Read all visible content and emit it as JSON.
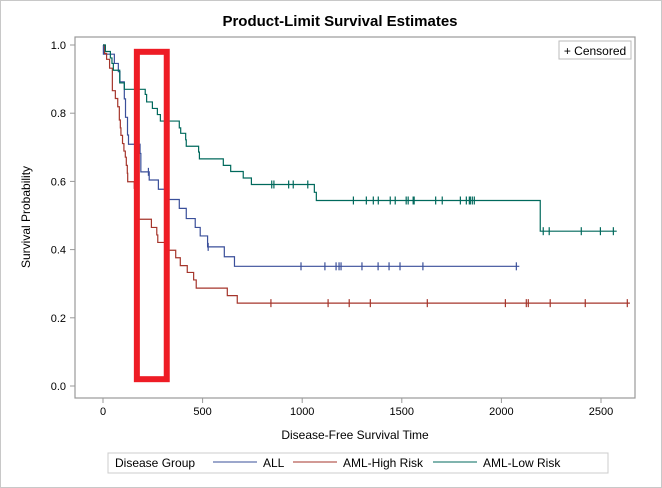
{
  "chart_data": {
    "type": "line",
    "title": "Product-Limit Survival Estimates",
    "xlabel": "Disease-Free Survival Time",
    "ylabel": "Survival Probability",
    "xlim": [
      -130,
      2650
    ],
    "ylim": [
      -0.03,
      1.04
    ],
    "xticks": [
      0,
      500,
      1000,
      1500,
      2000,
      2500
    ],
    "xtick_labels": [
      "0",
      "500",
      "1000",
      "1500",
      "2000",
      "2500"
    ],
    "yticks": [
      0.0,
      0.2,
      0.4,
      0.6,
      0.8,
      1.0
    ],
    "ytick_labels": [
      "0.0",
      "0.2",
      "0.4",
      "0.6",
      "0.8",
      "1.0"
    ],
    "grid": false,
    "inset_legend": {
      "label": "+ Censored",
      "placement": "top-right"
    },
    "legend": {
      "title": "Disease Group",
      "placement": "bottom"
    },
    "series": [
      {
        "name": "ALL",
        "color": "#3a4f9a",
        "end_time": 2090,
        "steps": [
          [
            0,
            1.0
          ],
          [
            2,
            0.973
          ],
          [
            57,
            0.946
          ],
          [
            77,
            0.922
          ],
          [
            85,
            0.892
          ],
          [
            107,
            0.842
          ],
          [
            113,
            0.788
          ],
          [
            123,
            0.736
          ],
          [
            128,
            0.709
          ],
          [
            186,
            0.682
          ],
          [
            190,
            0.628
          ],
          [
            232,
            0.604
          ],
          [
            278,
            0.577
          ],
          [
            331,
            0.547
          ],
          [
            383,
            0.521
          ],
          [
            418,
            0.491
          ],
          [
            463,
            0.465
          ],
          [
            488,
            0.44
          ],
          [
            525,
            0.408
          ],
          [
            609,
            0.379
          ],
          [
            660,
            0.351
          ]
        ],
        "censored": [
          228,
          528,
          994,
          1114,
          1170,
          1185,
          1195,
          1300,
          1381,
          1436,
          1491,
          1606,
          2075
        ]
      },
      {
        "name": "AML-High Risk",
        "color": "#a5352b",
        "end_time": 2645,
        "steps": [
          [
            0,
            1.0
          ],
          [
            8,
            0.975
          ],
          [
            18,
            0.958
          ],
          [
            33,
            0.932
          ],
          [
            47,
            0.866
          ],
          [
            62,
            0.843
          ],
          [
            74,
            0.819
          ],
          [
            82,
            0.78
          ],
          [
            87,
            0.757
          ],
          [
            90,
            0.735
          ],
          [
            98,
            0.711
          ],
          [
            105,
            0.689
          ],
          [
            112,
            0.671
          ],
          [
            117,
            0.647
          ],
          [
            122,
            0.624
          ],
          [
            124,
            0.599
          ],
          [
            157,
            0.58
          ],
          [
            170,
            0.489
          ],
          [
            243,
            0.465
          ],
          [
            270,
            0.443
          ],
          [
            275,
            0.421
          ],
          [
            325,
            0.398
          ],
          [
            365,
            0.376
          ],
          [
            388,
            0.353
          ],
          [
            423,
            0.333
          ],
          [
            455,
            0.311
          ],
          [
            468,
            0.287
          ],
          [
            624,
            0.265
          ],
          [
            674,
            0.243
          ]
        ],
        "censored": [
          843,
          1130,
          1236,
          1342,
          1628,
          2020,
          2125,
          2135,
          2245,
          2421,
          2632
        ]
      },
      {
        "name": "AML-Low Risk",
        "color": "#00695c",
        "end_time": 2579,
        "steps": [
          [
            0,
            1.0
          ],
          [
            12,
            0.981
          ],
          [
            37,
            0.962
          ],
          [
            45,
            0.946
          ],
          [
            52,
            0.926
          ],
          [
            84,
            0.889
          ],
          [
            107,
            0.87
          ],
          [
            212,
            0.855
          ],
          [
            219,
            0.833
          ],
          [
            248,
            0.814
          ],
          [
            273,
            0.796
          ],
          [
            288,
            0.777
          ],
          [
            383,
            0.757
          ],
          [
            390,
            0.741
          ],
          [
            415,
            0.722
          ],
          [
            418,
            0.703
          ],
          [
            480,
            0.686
          ],
          [
            484,
            0.666
          ],
          [
            604,
            0.647
          ],
          [
            641,
            0.629
          ],
          [
            704,
            0.61
          ],
          [
            745,
            0.591
          ],
          [
            1061,
            0.568
          ],
          [
            1071,
            0.544
          ],
          [
            2195,
            0.454
          ]
        ],
        "censored": [
          847,
          858,
          932,
          955,
          1028,
          1257,
          1322,
          1357,
          1382,
          1442,
          1467,
          1522,
          1532,
          1557,
          1562,
          1670,
          1703,
          1794,
          1824,
          1839,
          1844,
          1854,
          1864,
          2210,
          2240,
          2401,
          2497,
          2562
        ]
      }
    ],
    "annotation": {
      "type": "highlight-rectangle",
      "color": "#ee1c25",
      "x_range": [
        170,
        320
      ],
      "y_range": [
        0.02,
        0.98
      ]
    }
  }
}
